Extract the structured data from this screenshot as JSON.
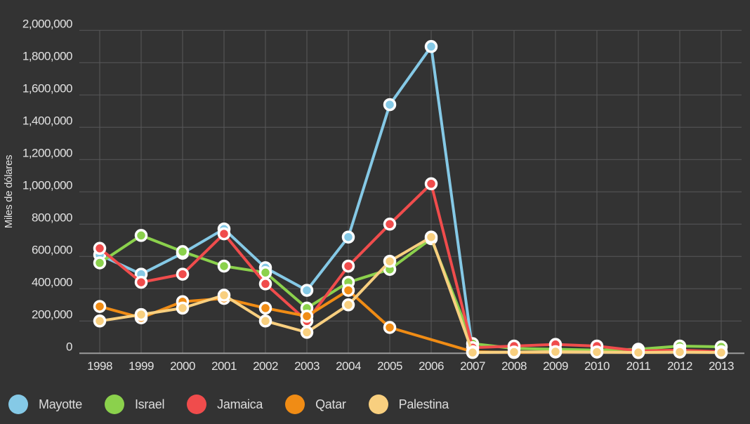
{
  "page": {
    "background": "#333333"
  },
  "colors": {
    "background": "#333333",
    "gridline": "#58585a",
    "axis_line": "#9b9b9b",
    "text": "#e2e2e2",
    "marker_ring": "#ffffff"
  },
  "chart_data": {
    "type": "line",
    "title": "",
    "xlabel": "",
    "ylabel": "Miles de dólares",
    "x_categories": [
      "1998",
      "1999",
      "2000",
      "2001",
      "2002",
      "2003",
      "2004",
      "2005",
      "2006",
      "2007",
      "2008",
      "2009",
      "2010",
      "2011",
      "2012",
      "2013"
    ],
    "ylim": [
      0,
      2000000
    ],
    "ytick_step": 200000,
    "ytick_labels": [
      "0",
      "200,000",
      "400,000",
      "600,000",
      "800,000",
      "1,000,000",
      "1,200,000",
      "1,400,000",
      "1,600,000",
      "1,800,000",
      "2,000,000"
    ],
    "grid": true,
    "legend_position": "bottom-left",
    "series": [
      {
        "name": "Mayotte",
        "color": "#85C9E6",
        "values": [
          610000,
          490000,
          620000,
          770000,
          530000,
          390000,
          720000,
          1540000,
          1900000,
          20000,
          null,
          null,
          null,
          null,
          null,
          null
        ]
      },
      {
        "name": "Israel",
        "color": "#8BD14C",
        "values": [
          560000,
          730000,
          630000,
          540000,
          500000,
          280000,
          440000,
          520000,
          710000,
          60000,
          30000,
          25000,
          20000,
          25000,
          45000,
          40000
        ]
      },
      {
        "name": "Jamaica",
        "color": "#F04C4C",
        "values": [
          650000,
          440000,
          490000,
          740000,
          430000,
          200000,
          540000,
          800000,
          1050000,
          35000,
          45000,
          55000,
          45000,
          15000,
          20000,
          10000
        ]
      },
      {
        "name": "Qatar",
        "color": "#F08C15",
        "values": [
          290000,
          220000,
          320000,
          340000,
          280000,
          230000,
          390000,
          160000,
          null,
          10000,
          5000,
          8000,
          8000,
          5000,
          8000,
          5000
        ]
      },
      {
        "name": "Palestina",
        "color": "#F8CF7F",
        "values": [
          200000,
          240000,
          280000,
          360000,
          200000,
          130000,
          300000,
          570000,
          720000,
          5000,
          8000,
          10000,
          8000,
          5000,
          8000,
          5000
        ]
      }
    ]
  }
}
